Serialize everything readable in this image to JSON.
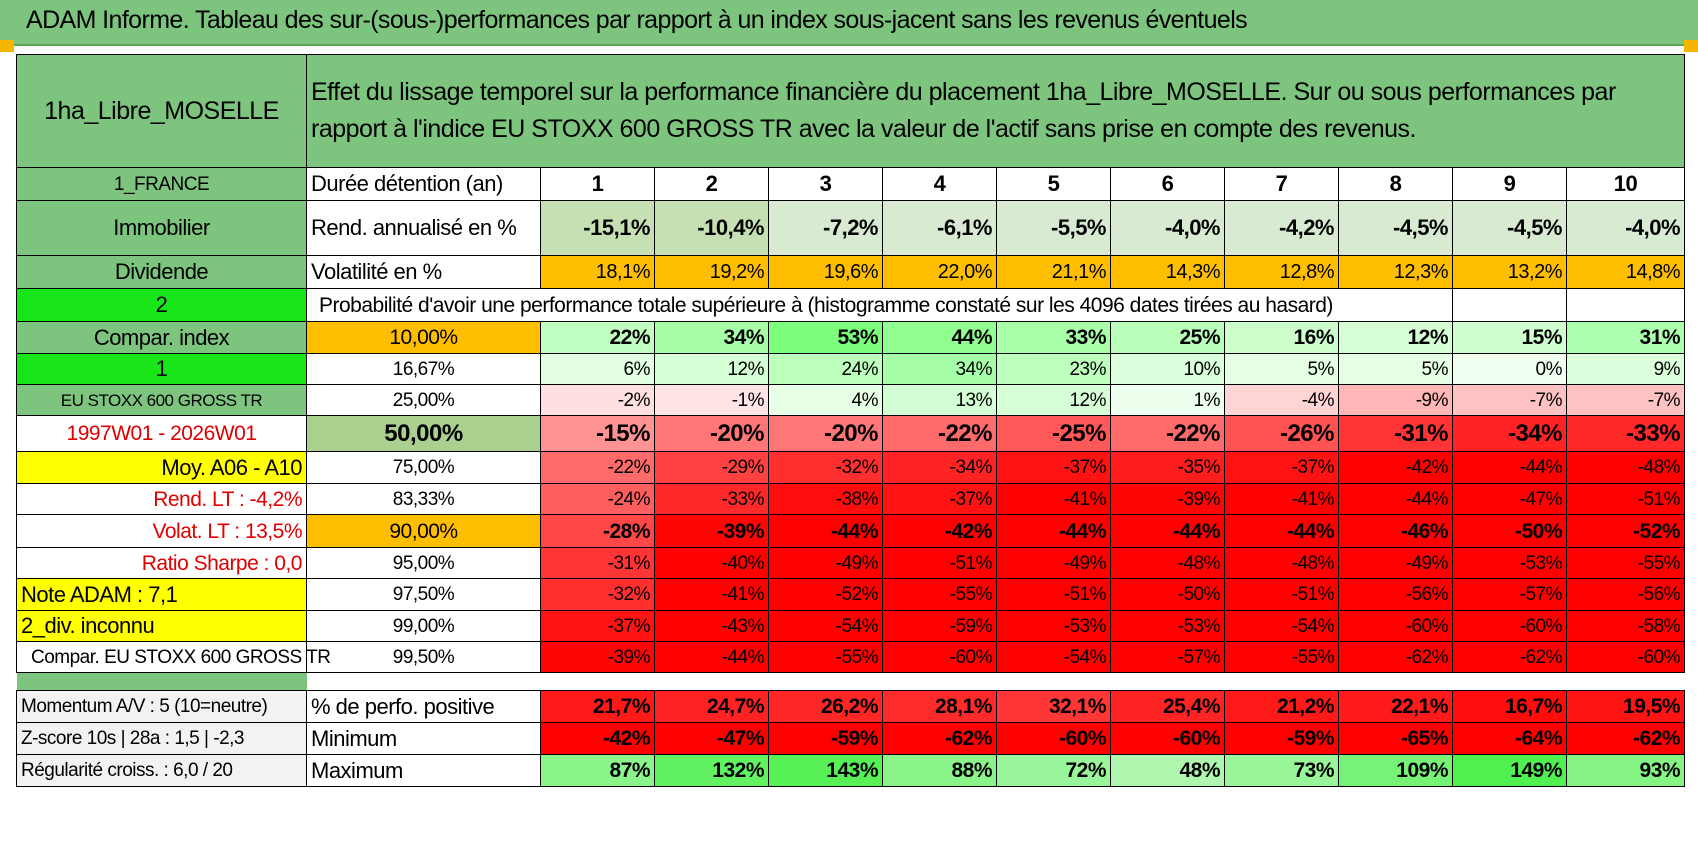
{
  "title": "ADAM Informe. Tableau des sur-(sous-)performances par rapport à un index sous-jacent sans les revenus éventuels",
  "left": {
    "fund": "1ha_Libre_MOSELLE",
    "country": "1_FRANCE",
    "category": "Immobilier",
    "dividend": "Dividende",
    "code2": "2",
    "compar_index": "Compar. index",
    "code1": "1",
    "index_name": "EU STOXX 600 GROSS TR",
    "period": "1997W01 - 2026W01",
    "moy": "Moy. A06 - A10",
    "rend_lt": "Rend. LT :    -4,2%",
    "volat_lt": "Volat. LT :    13,5%",
    "sharpe": "Ratio Sharpe :     0,0",
    "note": "Note ADAM : 7,1",
    "div": "2_div. inconnu",
    "compar_full": "Compar. EU STOXX 600 GROSS TR",
    "momentum": "Momentum A/V : 5 (10=neutre)",
    "zscore": "Z-score 10s | 28a : 1,5 | -2,3",
    "regularite": "Régularité croiss. : 6,0 / 20"
  },
  "description": "Effet du lissage temporel sur la performance financière du placement 1ha_Libre_MOSELLE. Sur ou sous performances par rapport à l'indice EU STOXX 600 GROSS TR avec la valeur de l'actif sans prise en compte des revenus.",
  "labels": {
    "duree": "Durée détention (an)",
    "rend": "Rend. annualisé en %",
    "volat": "Volatilité en %",
    "proba": "Probabilité d'avoir une performance totale supérieure à (histogramme constaté sur les 4096 dates tirées au hasard)",
    "positive": "% de perfo. positive",
    "minimum": "Minimum",
    "maximum": "Maximum"
  },
  "years": [
    "1",
    "2",
    "3",
    "4",
    "5",
    "6",
    "7",
    "8",
    "9",
    "10"
  ],
  "rend": [
    "-15,1%",
    "-10,4%",
    "-7,2%",
    "-6,1%",
    "-5,5%",
    "-4,0%",
    "-4,2%",
    "-4,5%",
    "-4,5%",
    "-4,0%"
  ],
  "volat": [
    "18,1%",
    "19,2%",
    "19,6%",
    "22,0%",
    "21,1%",
    "14,3%",
    "12,8%",
    "12,3%",
    "13,2%",
    "14,8%"
  ],
  "percentile_rows": [
    {
      "pct": "10,00%",
      "vals": [
        "22%",
        "34%",
        "53%",
        "44%",
        "33%",
        "25%",
        "16%",
        "12%",
        "15%",
        "31%"
      ]
    },
    {
      "pct": "16,67%",
      "vals": [
        "6%",
        "12%",
        "24%",
        "34%",
        "23%",
        "10%",
        "5%",
        "5%",
        "0%",
        "9%"
      ]
    },
    {
      "pct": "25,00%",
      "vals": [
        "-2%",
        "-1%",
        "4%",
        "13%",
        "12%",
        "1%",
        "-4%",
        "-9%",
        "-7%",
        "-7%"
      ]
    },
    {
      "pct": "50,00%",
      "vals": [
        "-15%",
        "-20%",
        "-20%",
        "-22%",
        "-25%",
        "-22%",
        "-26%",
        "-31%",
        "-34%",
        "-33%"
      ]
    },
    {
      "pct": "75,00%",
      "vals": [
        "-22%",
        "-29%",
        "-32%",
        "-34%",
        "-37%",
        "-35%",
        "-37%",
        "-42%",
        "-44%",
        "-48%"
      ]
    },
    {
      "pct": "83,33%",
      "vals": [
        "-24%",
        "-33%",
        "-38%",
        "-37%",
        "-41%",
        "-39%",
        "-41%",
        "-44%",
        "-47%",
        "-51%"
      ]
    },
    {
      "pct": "90,00%",
      "vals": [
        "-28%",
        "-39%",
        "-44%",
        "-42%",
        "-44%",
        "-44%",
        "-44%",
        "-46%",
        "-50%",
        "-52%"
      ]
    },
    {
      "pct": "95,00%",
      "vals": [
        "-31%",
        "-40%",
        "-49%",
        "-51%",
        "-49%",
        "-48%",
        "-48%",
        "-49%",
        "-53%",
        "-55%"
      ]
    },
    {
      "pct": "97,50%",
      "vals": [
        "-32%",
        "-41%",
        "-52%",
        "-55%",
        "-51%",
        "-50%",
        "-51%",
        "-56%",
        "-57%",
        "-56%"
      ]
    },
    {
      "pct": "99,00%",
      "vals": [
        "-37%",
        "-43%",
        "-54%",
        "-59%",
        "-53%",
        "-53%",
        "-54%",
        "-60%",
        "-60%",
        "-58%"
      ]
    },
    {
      "pct": "99,50%",
      "vals": [
        "-39%",
        "-44%",
        "-55%",
        "-60%",
        "-54%",
        "-57%",
        "-55%",
        "-62%",
        "-62%",
        "-60%"
      ]
    }
  ],
  "positive": [
    "21,7%",
    "24,7%",
    "26,2%",
    "28,1%",
    "32,1%",
    "25,4%",
    "21,2%",
    "22,1%",
    "16,7%",
    "19,5%"
  ],
  "minimum": [
    "-42%",
    "-47%",
    "-59%",
    "-62%",
    "-60%",
    "-60%",
    "-59%",
    "-65%",
    "-64%",
    "-62%"
  ],
  "maximum": [
    "87%",
    "132%",
    "143%",
    "88%",
    "72%",
    "48%",
    "73%",
    "109%",
    "149%",
    "93%"
  ],
  "colors": {
    "header_green": "#7dc57f",
    "bright_green": "#19e619",
    "orange": "#ffbf00",
    "yellow": "#ffff00",
    "red": "#ff0000"
  }
}
